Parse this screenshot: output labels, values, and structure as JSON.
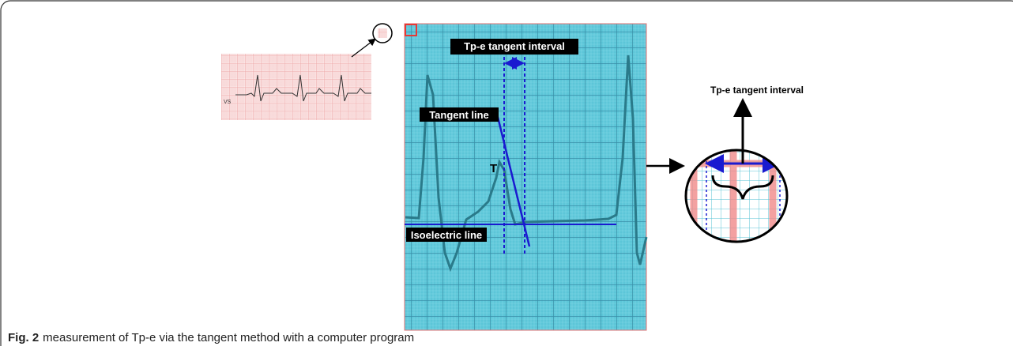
{
  "figure": {
    "label": "Fig. 2",
    "caption": "measurement of Tp-e via the tangent method with a computer program"
  },
  "small_ecg": {
    "lead": "VS"
  },
  "main_panel": {
    "interval_label": "Tp-e tangent interval",
    "tangent_label": "Tangent line",
    "peak_label": "T",
    "baseline_label": "Isoelectric line"
  },
  "zoom": {
    "label": "Tp-e tangent interval"
  }
}
